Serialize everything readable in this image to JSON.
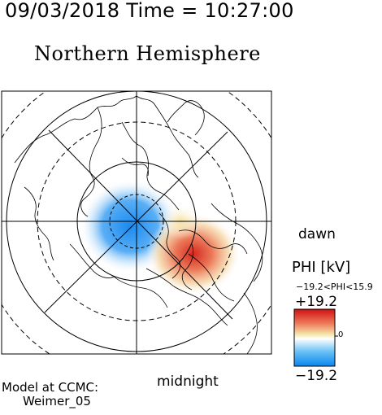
{
  "header": {
    "timestamp": "09/03/2018 Time = 10:27:00"
  },
  "plot": {
    "title": "Northern Hemisphere",
    "dawn_label": "dawn",
    "midnight_label": "midnight"
  },
  "colorbar": {
    "quantity_label": "PHI [kV]",
    "range_label": "−19.2<PHI<15.9",
    "max_label": "+19.2",
    "zero_label": "0",
    "min_label": "−19.2",
    "colors": {
      "negative": "#1a8af0",
      "neutral": "#ffffff",
      "mid": "#f2e6a0",
      "positive": "#d81818"
    }
  },
  "footer": {
    "model_line1": "Model at CCMC:",
    "model_line2": "Weimer_05"
  }
}
